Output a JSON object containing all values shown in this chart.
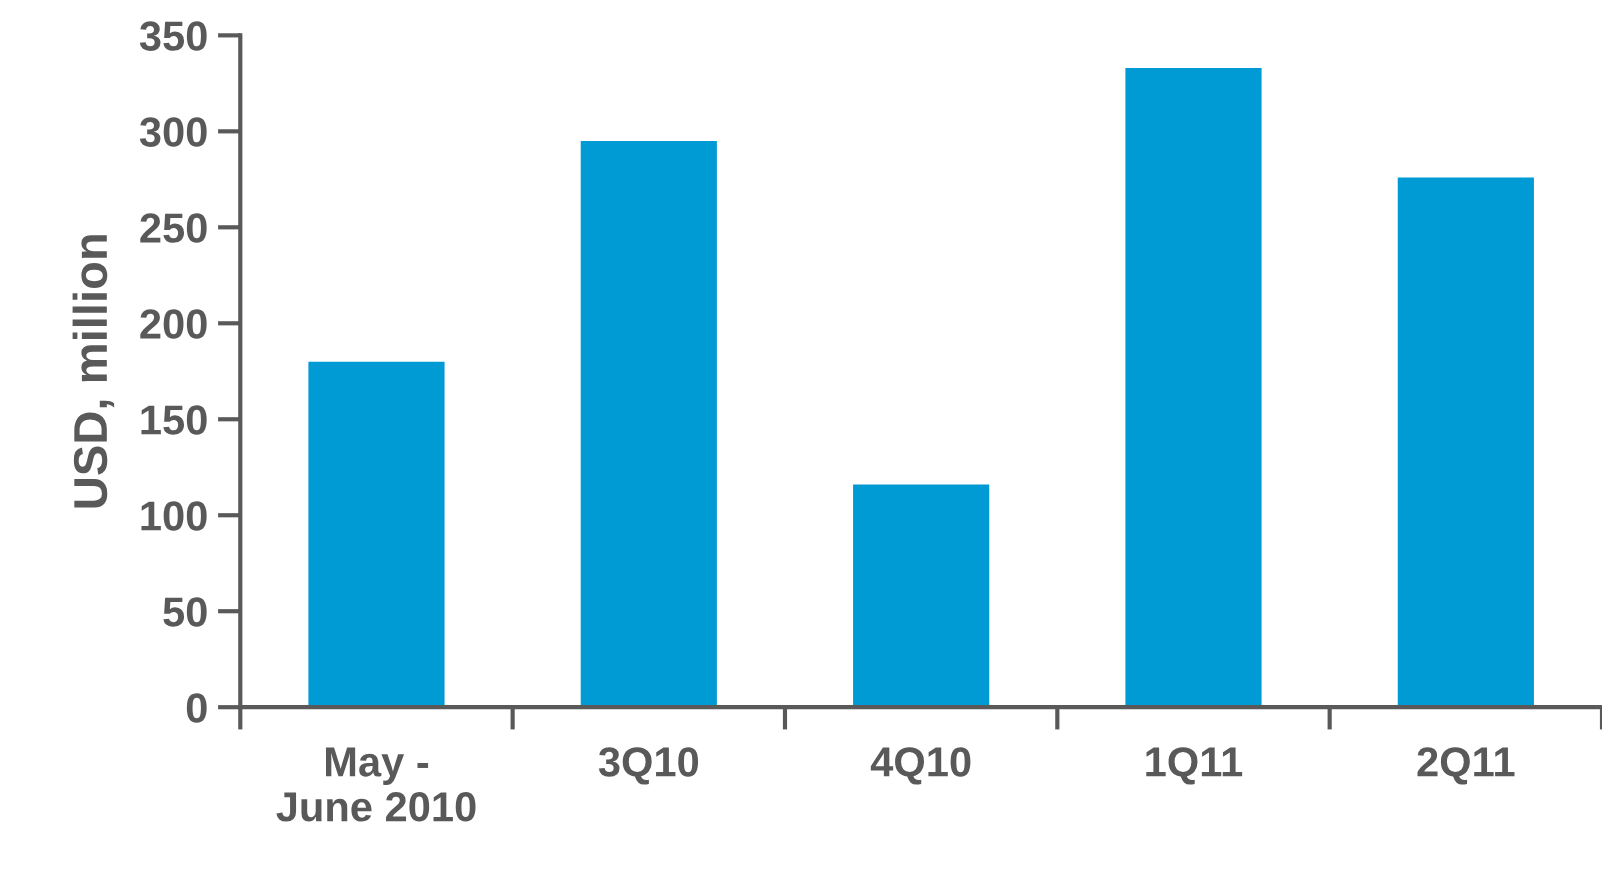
{
  "chart_data": {
    "type": "bar",
    "ylabel": "USD, million",
    "categories": [
      "May -\nJune 2010",
      "3Q10",
      "4Q10",
      "1Q11",
      "2Q11"
    ],
    "values": [
      180,
      295,
      116,
      333,
      276
    ],
    "color": "#009ad4",
    "ylim": [
      0,
      350
    ],
    "yticks": [
      0,
      50,
      100,
      150,
      200,
      250,
      300,
      350
    ],
    "grid": false
  }
}
